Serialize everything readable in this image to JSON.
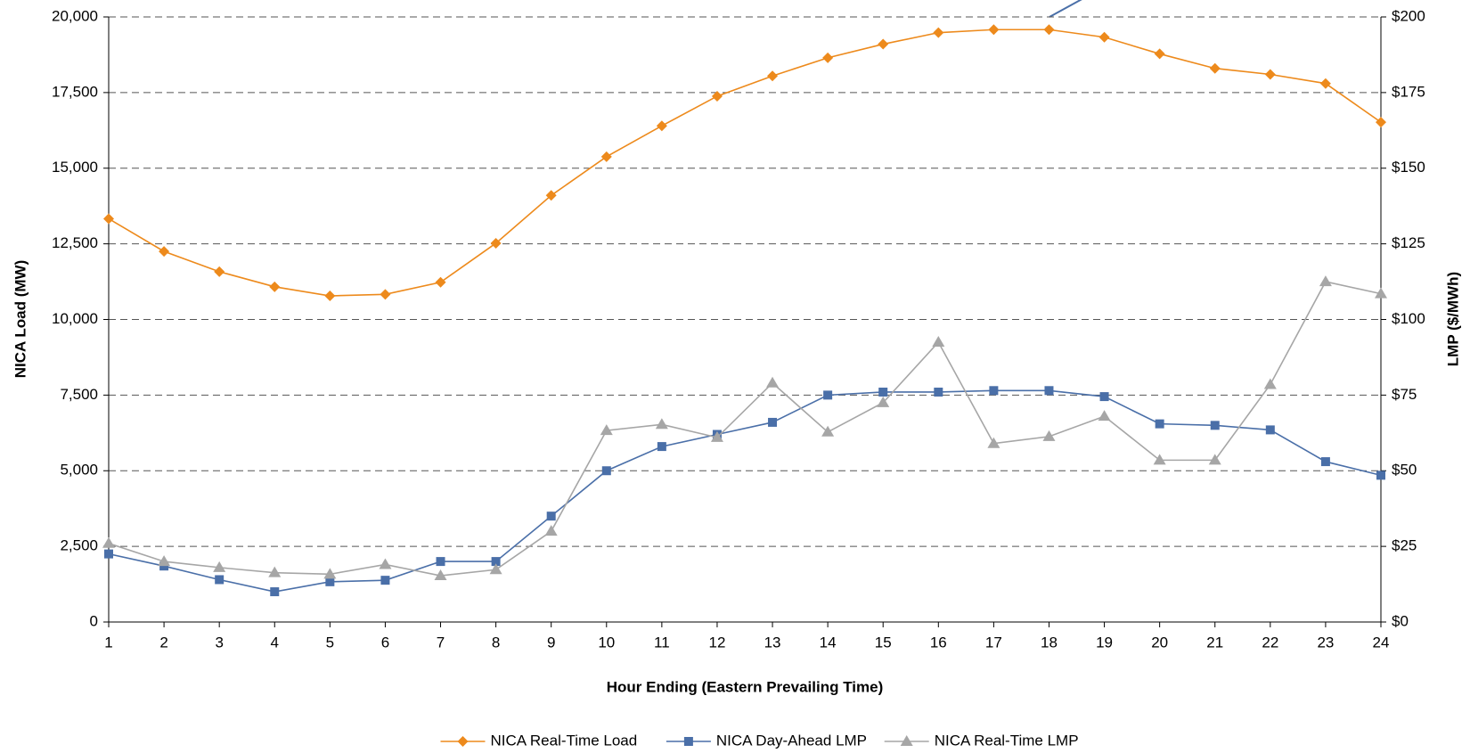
{
  "chart_data": {
    "type": "line",
    "x_label": "Hour Ending (Eastern Prevailing Time)",
    "y_label": "NICA Load (MW)",
    "y2_label": "LMP ($/MWh)",
    "x": [
      1,
      2,
      3,
      4,
      5,
      6,
      7,
      8,
      9,
      10,
      11,
      12,
      13,
      14,
      15,
      16,
      17,
      18,
      19,
      20,
      21,
      22,
      23,
      24
    ],
    "xlim": [
      1,
      24
    ],
    "xticks": [
      1,
      2,
      3,
      4,
      5,
      6,
      7,
      8,
      9,
      10,
      11,
      12,
      13,
      14,
      15,
      16,
      17,
      18,
      19,
      20,
      21,
      22,
      23,
      24
    ],
    "ylim": [
      0,
      20000
    ],
    "yticks": [
      0,
      {
        "value": 2500,
        "label": "2,500"
      },
      {
        "value": 5000,
        "label": "5,000"
      },
      {
        "value": 7500,
        "label": "7,500"
      },
      {
        "value": 10000,
        "label": "10,000"
      },
      {
        "value": 12500,
        "label": "12,500"
      },
      {
        "value": 15000,
        "label": "15,000"
      },
      {
        "value": 17500,
        "label": "17,500"
      },
      {
        "value": 20000,
        "label": "20,000"
      }
    ],
    "y2lim": [
      0,
      200
    ],
    "y2ticks": [
      {
        "value": 0,
        "label": "$0"
      },
      {
        "value": 25,
        "label": "$25"
      },
      {
        "value": 50,
        "label": "$50"
      },
      {
        "value": 75,
        "label": "$75"
      },
      {
        "value": 100,
        "label": "$100"
      },
      {
        "value": 125,
        "label": "$125"
      },
      {
        "value": 150,
        "label": "$150"
      },
      {
        "value": 175,
        "label": "$175"
      },
      {
        "value": 200,
        "label": "$200"
      }
    ],
    "grid": true,
    "legend": "bottom",
    "series": [
      {
        "name": "NICA Real-Time Load",
        "color": "#ED8A1C",
        "marker": "diamond",
        "values": [
          13330,
          12250,
          11580,
          11080,
          10780,
          10830,
          11230,
          12520,
          14100,
          15380,
          16400,
          17380,
          18050,
          18650,
          19100,
          19480,
          19580,
          19580,
          19330,
          18780,
          18300,
          18100,
          17800,
          16520
        ]
      },
      {
        "name": "NICA Day-Ahead LMP",
        "color": "#4A6FA8",
        "marker": "square",
        "axis": "y2",
        "values": [
          22.5,
          18.5,
          14,
          10,
          13.3,
          13.8,
          20,
          20,
          35,
          50,
          58,
          62,
          66,
          75,
          76,
          76,
          76.5,
          76.5,
          74.5,
          65.5,
          65,
          63.5,
          53,
          48.5
        ]
      },
      {
        "name": "NICA Real-Time LMP",
        "color": "#A6A6A6",
        "marker": "triangle",
        "axis": "y2",
        "values": [
          26,
          20,
          18,
          16.3,
          15.8,
          19,
          15.3,
          17.3,
          30,
          63.3,
          65.3,
          61,
          79,
          62.8,
          72.5,
          92.5,
          59,
          61.3,
          68,
          53.5,
          53.5,
          78.5,
          112.5,
          108.5
        ]
      }
    ]
  }
}
